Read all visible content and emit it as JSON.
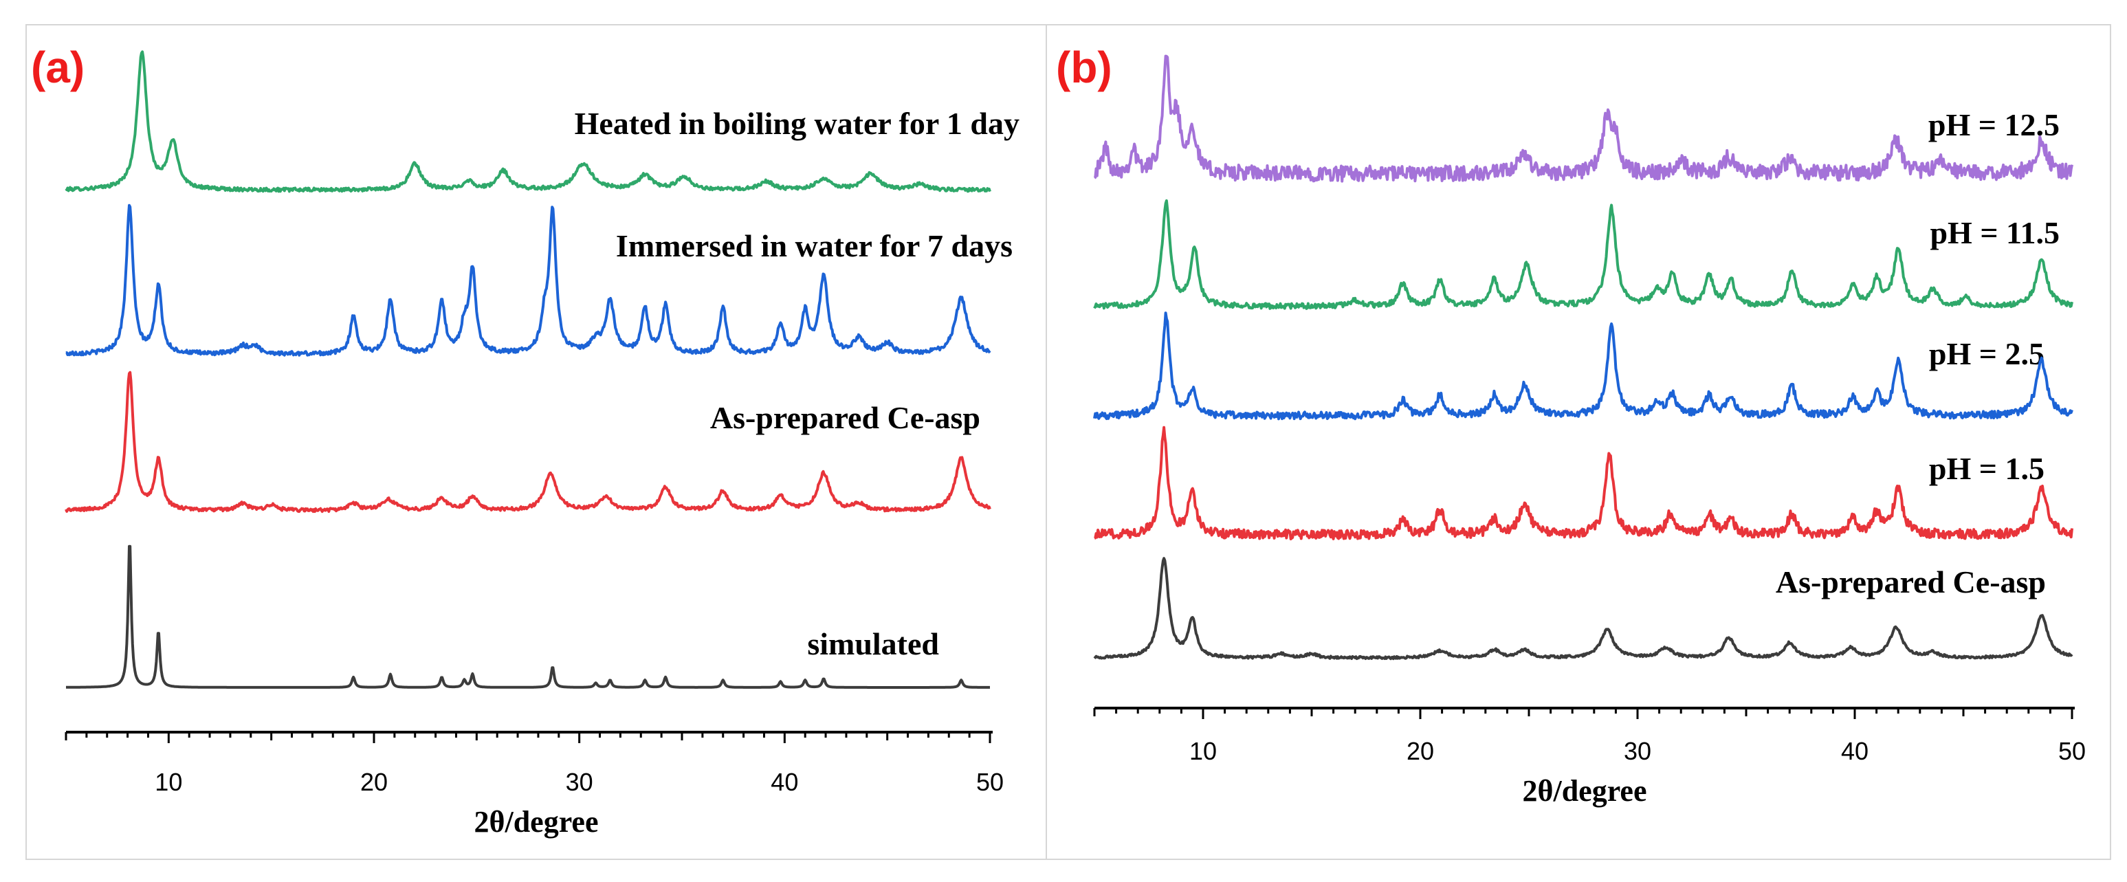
{
  "colors": {
    "panel_label": "#ee1c1c",
    "green": "#2fa86a",
    "blue": "#1c63d6",
    "red": "#e8343a",
    "black": "#3c3c3c",
    "purple": "#a472d8",
    "border": "#d6d6d6"
  },
  "chart_data": [
    {
      "type": "line",
      "panel_label": "(a)",
      "xlabel": "2θ/degree",
      "ylabel": "",
      "xlim": [
        5,
        50
      ],
      "xticks": [
        10,
        20,
        30,
        40,
        50
      ],
      "grid": false,
      "legend": "none",
      "series": [
        {
          "name": "Heated in boiling water for 1 day",
          "color": "#2fa86a",
          "baseline_level": 0.03,
          "noise": 0.012,
          "peaks": [
            [
              8.7,
              0.95,
              0.28
            ],
            [
              10.2,
              0.32,
              0.3
            ],
            [
              22.0,
              0.18,
              0.35
            ],
            [
              24.6,
              0.06,
              0.3
            ],
            [
              26.3,
              0.13,
              0.35
            ],
            [
              30.2,
              0.18,
              0.5
            ],
            [
              33.2,
              0.1,
              0.4
            ],
            [
              35.1,
              0.09,
              0.4
            ],
            [
              39.1,
              0.06,
              0.4
            ],
            [
              41.9,
              0.08,
              0.4
            ],
            [
              44.2,
              0.11,
              0.45
            ],
            [
              46.6,
              0.04,
              0.4
            ]
          ]
        },
        {
          "name": "Immersed in water for 7 days",
          "color": "#1c63d6",
          "baseline_level": 0.04,
          "noise": 0.014,
          "peaks": [
            [
              8.1,
              1.0,
              0.2
            ],
            [
              9.5,
              0.45,
              0.2
            ],
            [
              13.6,
              0.05,
              0.3
            ],
            [
              14.2,
              0.05,
              0.3
            ],
            [
              19.0,
              0.25,
              0.2
            ],
            [
              20.8,
              0.37,
              0.2
            ],
            [
              23.3,
              0.35,
              0.2
            ],
            [
              24.4,
              0.17,
              0.2
            ],
            [
              24.8,
              0.55,
              0.2
            ],
            [
              28.3,
              0.2,
              0.2
            ],
            [
              28.7,
              0.94,
              0.2
            ],
            [
              30.8,
              0.08,
              0.3
            ],
            [
              31.5,
              0.35,
              0.25
            ],
            [
              33.2,
              0.3,
              0.2
            ],
            [
              34.2,
              0.32,
              0.2
            ],
            [
              37.0,
              0.31,
              0.2
            ],
            [
              39.8,
              0.2,
              0.2
            ],
            [
              41.0,
              0.27,
              0.2
            ],
            [
              41.9,
              0.52,
              0.25
            ],
            [
              43.6,
              0.1,
              0.3
            ],
            [
              45.0,
              0.07,
              0.3
            ],
            [
              48.6,
              0.38,
              0.35
            ]
          ]
        },
        {
          "name": "As-prepared Ce-asp",
          "color": "#e8343a",
          "baseline_level": 0.04,
          "noise": 0.012,
          "peaks": [
            [
              8.1,
              1.0,
              0.22
            ],
            [
              9.5,
              0.36,
              0.22
            ],
            [
              13.6,
              0.05,
              0.3
            ],
            [
              15.0,
              0.04,
              0.3
            ],
            [
              19.0,
              0.05,
              0.3
            ],
            [
              20.7,
              0.08,
              0.4
            ],
            [
              23.3,
              0.09,
              0.3
            ],
            [
              24.8,
              0.1,
              0.3
            ],
            [
              28.6,
              0.27,
              0.35
            ],
            [
              31.3,
              0.1,
              0.35
            ],
            [
              34.2,
              0.17,
              0.3
            ],
            [
              37.0,
              0.14,
              0.3
            ],
            [
              39.8,
              0.1,
              0.3
            ],
            [
              41.9,
              0.27,
              0.35
            ],
            [
              43.6,
              0.05,
              0.3
            ],
            [
              48.6,
              0.38,
              0.35
            ]
          ]
        },
        {
          "name": "simulated",
          "color": "#3c3c3c",
          "baseline_level": 0.0,
          "noise": 0.0,
          "peaks": [
            [
              8.1,
              1.0,
              0.09
            ],
            [
              9.5,
              0.38,
              0.09
            ],
            [
              19.0,
              0.07,
              0.09
            ],
            [
              20.8,
              0.09,
              0.09
            ],
            [
              23.3,
              0.07,
              0.09
            ],
            [
              24.4,
              0.05,
              0.09
            ],
            [
              24.8,
              0.09,
              0.09
            ],
            [
              28.7,
              0.14,
              0.09
            ],
            [
              30.8,
              0.03,
              0.09
            ],
            [
              31.5,
              0.05,
              0.09
            ],
            [
              33.2,
              0.05,
              0.09
            ],
            [
              34.2,
              0.07,
              0.09
            ],
            [
              37.0,
              0.05,
              0.09
            ],
            [
              39.8,
              0.04,
              0.09
            ],
            [
              41.0,
              0.05,
              0.09
            ],
            [
              41.9,
              0.06,
              0.09
            ],
            [
              48.6,
              0.05,
              0.09
            ]
          ]
        }
      ]
    },
    {
      "type": "line",
      "panel_label": "(b)",
      "xlabel": "2θ/degree",
      "ylabel": "",
      "xlim": [
        5,
        50
      ],
      "xticks": [
        10,
        20,
        30,
        40,
        50
      ],
      "grid": false,
      "legend": "none",
      "series": [
        {
          "name": "pH = 12.5",
          "color": "#a472d8",
          "baseline_level": 0.12,
          "noise": 0.07,
          "peaks": [
            [
              5.5,
              0.25,
              0.15
            ],
            [
              6.8,
              0.22,
              0.15
            ],
            [
              8.3,
              0.98,
              0.2
            ],
            [
              8.8,
              0.45,
              0.2
            ],
            [
              9.5,
              0.4,
              0.22
            ],
            [
              24.8,
              0.18,
              0.3
            ],
            [
              28.6,
              0.5,
              0.25
            ],
            [
              29.0,
              0.25,
              0.2
            ],
            [
              32.0,
              0.12,
              0.3
            ],
            [
              34.2,
              0.15,
              0.3
            ],
            [
              37.0,
              0.12,
              0.3
            ],
            [
              41.9,
              0.3,
              0.3
            ],
            [
              44.0,
              0.1,
              0.3
            ],
            [
              48.6,
              0.3,
              0.3
            ]
          ]
        },
        {
          "name": "pH = 11.5",
          "color": "#2fa86a",
          "baseline_level": 0.06,
          "noise": 0.025,
          "peaks": [
            [
              8.3,
              1.0,
              0.22
            ],
            [
              9.6,
              0.55,
              0.22
            ],
            [
              17.0,
              0.06,
              0.3
            ],
            [
              19.2,
              0.22,
              0.22
            ],
            [
              20.9,
              0.25,
              0.22
            ],
            [
              23.4,
              0.25,
              0.22
            ],
            [
              24.9,
              0.4,
              0.3
            ],
            [
              28.8,
              0.95,
              0.25
            ],
            [
              30.9,
              0.15,
              0.25
            ],
            [
              31.6,
              0.3,
              0.22
            ],
            [
              33.3,
              0.3,
              0.22
            ],
            [
              34.3,
              0.25,
              0.22
            ],
            [
              37.1,
              0.35,
              0.22
            ],
            [
              39.9,
              0.2,
              0.22
            ],
            [
              41.0,
              0.25,
              0.22
            ],
            [
              42.0,
              0.55,
              0.25
            ],
            [
              43.6,
              0.15,
              0.25
            ],
            [
              45.1,
              0.08,
              0.25
            ],
            [
              48.6,
              0.45,
              0.3
            ]
          ]
        },
        {
          "name": "pH = 2.5",
          "color": "#1c63d6",
          "baseline_level": 0.07,
          "noise": 0.035,
          "peaks": [
            [
              8.3,
              1.0,
              0.2
            ],
            [
              9.5,
              0.25,
              0.2
            ],
            [
              19.2,
              0.15,
              0.22
            ],
            [
              20.9,
              0.2,
              0.22
            ],
            [
              23.4,
              0.2,
              0.22
            ],
            [
              24.8,
              0.3,
              0.3
            ],
            [
              28.8,
              0.9,
              0.22
            ],
            [
              30.9,
              0.12,
              0.25
            ],
            [
              31.6,
              0.2,
              0.22
            ],
            [
              33.3,
              0.2,
              0.22
            ],
            [
              34.3,
              0.2,
              0.22
            ],
            [
              37.1,
              0.3,
              0.22
            ],
            [
              39.9,
              0.18,
              0.22
            ],
            [
              41.0,
              0.2,
              0.22
            ],
            [
              42.0,
              0.55,
              0.25
            ],
            [
              48.6,
              0.55,
              0.3
            ]
          ]
        },
        {
          "name": "pH = 1.5",
          "color": "#e8343a",
          "baseline_level": 0.08,
          "noise": 0.045,
          "peaks": [
            [
              8.2,
              1.0,
              0.2
            ],
            [
              9.5,
              0.45,
              0.2
            ],
            [
              19.2,
              0.15,
              0.22
            ],
            [
              20.9,
              0.25,
              0.22
            ],
            [
              23.4,
              0.15,
              0.22
            ],
            [
              24.8,
              0.3,
              0.3
            ],
            [
              28.7,
              0.8,
              0.22
            ],
            [
              31.5,
              0.2,
              0.22
            ],
            [
              33.3,
              0.2,
              0.22
            ],
            [
              34.3,
              0.15,
              0.22
            ],
            [
              37.1,
              0.2,
              0.22
            ],
            [
              39.9,
              0.15,
              0.22
            ],
            [
              41.0,
              0.2,
              0.22
            ],
            [
              42.0,
              0.45,
              0.25
            ],
            [
              48.6,
              0.45,
              0.3
            ]
          ]
        },
        {
          "name": "As-prepared Ce-asp",
          "color": "#3c3c3c",
          "baseline_level": 0.04,
          "noise": 0.012,
          "peaks": [
            [
              8.2,
              1.0,
              0.25
            ],
            [
              9.5,
              0.38,
              0.22
            ],
            [
              13.6,
              0.04,
              0.3
            ],
            [
              15.0,
              0.04,
              0.3
            ],
            [
              20.9,
              0.07,
              0.4
            ],
            [
              23.4,
              0.08,
              0.3
            ],
            [
              24.8,
              0.08,
              0.3
            ],
            [
              28.6,
              0.28,
              0.35
            ],
            [
              31.3,
              0.1,
              0.35
            ],
            [
              34.2,
              0.2,
              0.3
            ],
            [
              37.0,
              0.15,
              0.3
            ],
            [
              39.8,
              0.1,
              0.3
            ],
            [
              41.9,
              0.3,
              0.35
            ],
            [
              43.6,
              0.05,
              0.3
            ],
            [
              48.6,
              0.42,
              0.35
            ]
          ]
        }
      ]
    }
  ]
}
